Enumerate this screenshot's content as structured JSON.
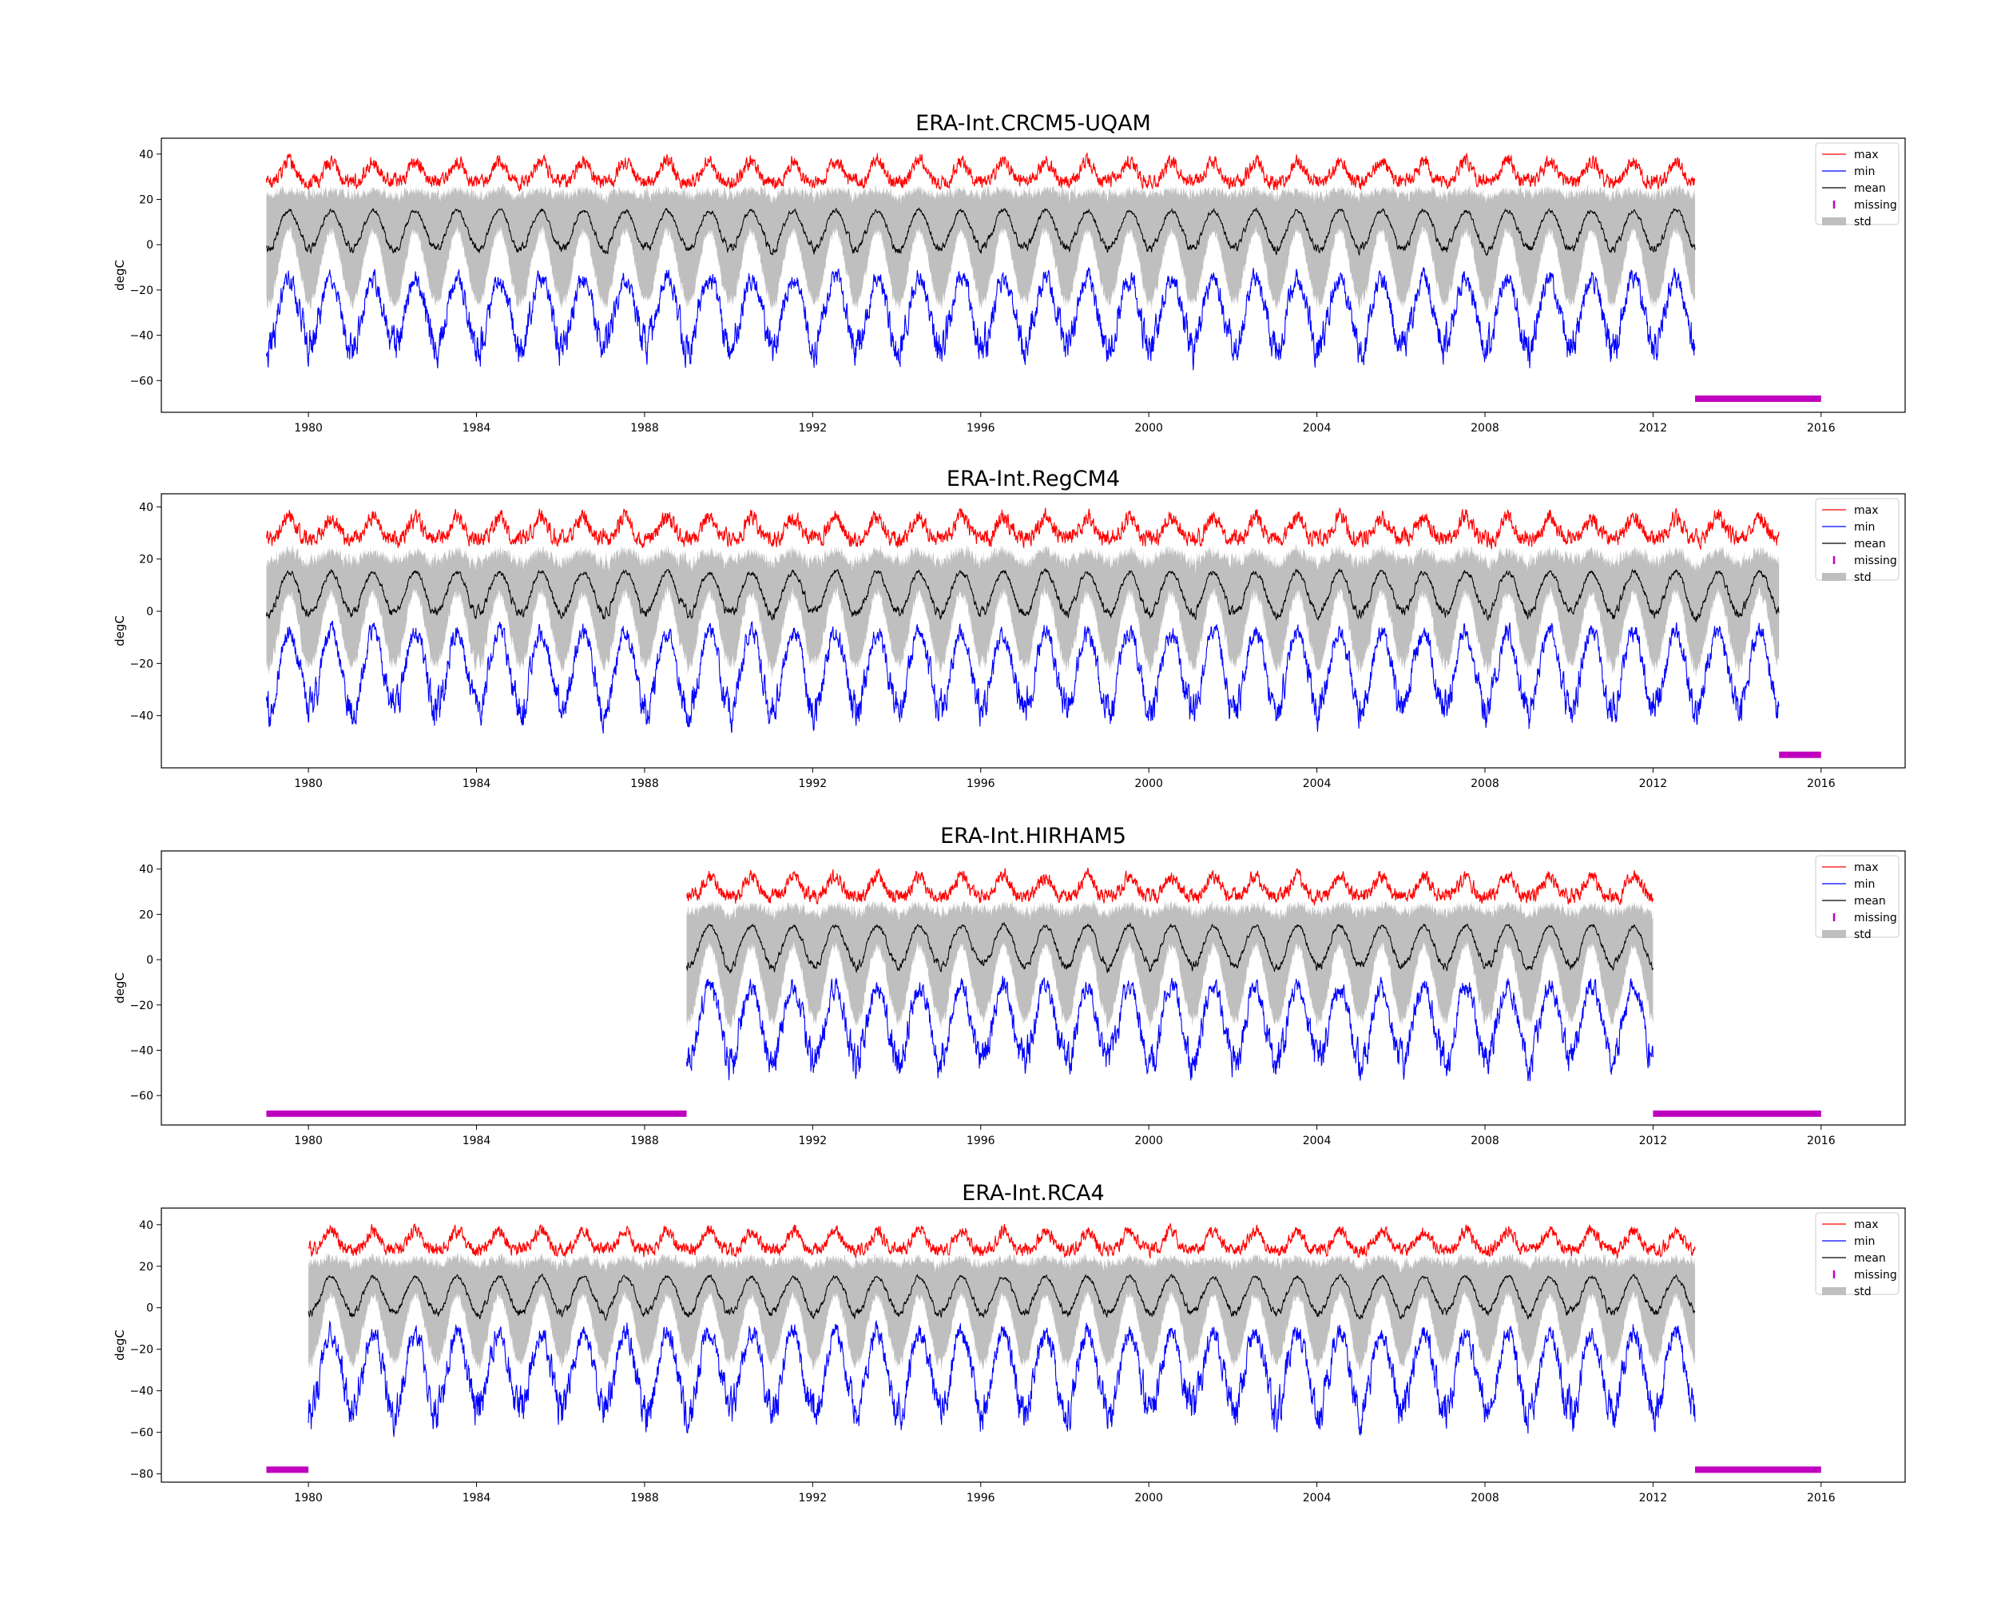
{
  "chart_data": [
    {
      "type": "line",
      "title": "ERA-Int.CRCM5-UQAM",
      "ylabel": "degC",
      "xlabel": "",
      "xlim": [
        1976.5,
        2018.0
      ],
      "ylim": [
        -74,
        47
      ],
      "yticks": [
        40,
        20,
        0,
        -20,
        -40,
        -60
      ],
      "xticks": [
        "1980",
        "1984",
        "1988",
        "1992",
        "1996",
        "2000",
        "2004",
        "2008",
        "2012",
        "2016"
      ],
      "data_range": [
        1979.0,
        2013.0
      ],
      "missing": [
        [
          2013.0,
          2016.0
        ]
      ],
      "missing_y": -68,
      "series": [
        {
          "name": "max",
          "baseline": 28,
          "peak": 37,
          "noise": 2.5,
          "color": "#ff0000"
        },
        {
          "name": "min",
          "baseline": -45,
          "peak": -15,
          "noise": 6,
          "color": "#0000ff"
        },
        {
          "name": "mean",
          "baseline": -2,
          "peak": 15,
          "noise": 1.5,
          "color": "#000000"
        },
        {
          "name": "missing",
          "color": "#bf00bf"
        },
        {
          "name": "std",
          "spread_winter": 24,
          "spread_summer": 9,
          "color": "#bfbfbf"
        }
      ],
      "legend": [
        "max",
        "min",
        "mean",
        "missing",
        "std"
      ],
      "legend_position": "top-right"
    },
    {
      "type": "line",
      "title": "ERA-Int.RegCM4",
      "ylabel": "degC",
      "xlabel": "",
      "xlim": [
        1976.5,
        2018.0
      ],
      "ylim": [
        -60,
        45
      ],
      "yticks": [
        40,
        20,
        0,
        -20,
        -40
      ],
      "xticks": [
        "1980",
        "1984",
        "1988",
        "1992",
        "1996",
        "2000",
        "2004",
        "2008",
        "2012",
        "2016"
      ],
      "data_range": [
        1979.0,
        2015.0
      ],
      "missing": [
        [
          2015.0,
          2016.0
        ]
      ],
      "missing_y": -55,
      "series": [
        {
          "name": "max",
          "baseline": 28,
          "peak": 36,
          "noise": 2.5,
          "color": "#ff0000"
        },
        {
          "name": "min",
          "baseline": -38,
          "peak": -8,
          "noise": 5,
          "color": "#0000ff"
        },
        {
          "name": "mean",
          "baseline": -1,
          "peak": 15,
          "noise": 1.5,
          "color": "#000000"
        },
        {
          "name": "missing",
          "color": "#bf00bf"
        },
        {
          "name": "std",
          "spread_winter": 20,
          "spread_summer": 8,
          "color": "#bfbfbf"
        }
      ],
      "legend": [
        "max",
        "min",
        "mean",
        "missing",
        "std"
      ],
      "legend_position": "top-right"
    },
    {
      "type": "line",
      "title": "ERA-Int.HIRHAM5",
      "ylabel": "degC",
      "xlabel": "",
      "xlim": [
        1976.5,
        2018.0
      ],
      "ylim": [
        -73,
        48
      ],
      "yticks": [
        40,
        20,
        0,
        -20,
        -40,
        -60
      ],
      "xticks": [
        "1980",
        "1984",
        "1988",
        "1992",
        "1996",
        "2000",
        "2004",
        "2008",
        "2012",
        "2016"
      ],
      "data_range": [
        1989.0,
        2012.0
      ],
      "missing": [
        [
          1979.0,
          1989.0
        ],
        [
          2012.0,
          2016.0
        ]
      ],
      "missing_y": -68,
      "series": [
        {
          "name": "max",
          "baseline": 28,
          "peak": 37,
          "noise": 2.5,
          "color": "#ff0000"
        },
        {
          "name": "min",
          "baseline": -45,
          "peak": -12,
          "noise": 6,
          "color": "#0000ff"
        },
        {
          "name": "mean",
          "baseline": -3,
          "peak": 15,
          "noise": 1.5,
          "color": "#000000"
        },
        {
          "name": "missing",
          "color": "#bf00bf"
        },
        {
          "name": "std",
          "spread_winter": 24,
          "spread_summer": 9,
          "color": "#bfbfbf"
        }
      ],
      "legend": [
        "max",
        "min",
        "mean",
        "missing",
        "std"
      ],
      "legend_position": "top-right"
    },
    {
      "type": "line",
      "title": "ERA-Int.RCA4",
      "ylabel": "degC",
      "xlabel": "",
      "xlim": [
        1976.5,
        2018.0
      ],
      "ylim": [
        -84,
        48
      ],
      "yticks": [
        40,
        20,
        0,
        -20,
        -40,
        -60,
        -80
      ],
      "xticks": [
        "1980",
        "1984",
        "1988",
        "1992",
        "1996",
        "2000",
        "2004",
        "2008",
        "2012",
        "2016"
      ],
      "data_range": [
        1980.0,
        2013.0
      ],
      "missing": [
        [
          1979.0,
          1980.0
        ],
        [
          2013.0,
          2016.0
        ]
      ],
      "missing_y": -78,
      "series": [
        {
          "name": "max",
          "baseline": 28,
          "peak": 37,
          "noise": 2.5,
          "color": "#ff0000"
        },
        {
          "name": "min",
          "baseline": -50,
          "peak": -12,
          "noise": 7,
          "color": "#0000ff"
        },
        {
          "name": "mean",
          "baseline": -3,
          "peak": 15,
          "noise": 1.5,
          "color": "#000000"
        },
        {
          "name": "missing",
          "color": "#bf00bf"
        },
        {
          "name": "std",
          "spread_winter": 24,
          "spread_summer": 9,
          "color": "#bfbfbf"
        }
      ],
      "legend": [
        "max",
        "min",
        "mean",
        "missing",
        "std"
      ],
      "legend_position": "top-right"
    }
  ]
}
